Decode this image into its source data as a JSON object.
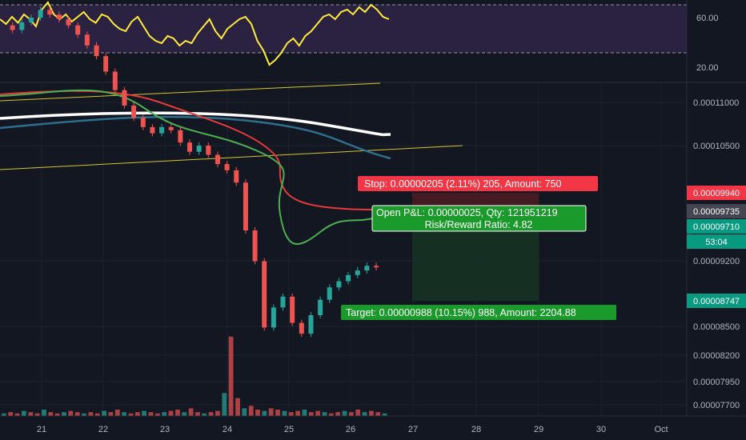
{
  "chart_data": {
    "type": "candlestick",
    "rsi": {
      "axis_ticks": [
        "60.00",
        "20.00"
      ],
      "upper_band": 70,
      "lower_band": 30,
      "values": [
        58,
        54,
        60,
        55,
        62,
        58,
        52,
        66,
        72,
        62,
        58,
        62,
        56,
        60,
        64,
        58,
        55,
        62,
        60,
        54,
        50,
        48,
        56,
        60,
        52,
        44,
        40,
        38,
        44,
        42,
        36,
        40,
        38,
        46,
        52,
        58,
        48,
        42,
        50,
        54,
        58,
        60,
        54,
        40,
        32,
        20,
        24,
        30,
        38,
        42,
        36,
        44,
        48,
        54,
        60,
        62,
        58,
        64,
        66,
        62,
        68,
        64,
        70,
        66,
        60,
        58
      ]
    },
    "price": {
      "axis_ticks": [
        "0.00011000",
        "0.00010500",
        "0.00009200",
        "0.00008500",
        "0.00008200",
        "0.00007950",
        "0.00007700"
      ],
      "price_tags": [
        {
          "label": "0.00009940",
          "color": "#f23645"
        },
        {
          "label": "0.00009735",
          "color": "#434651"
        },
        {
          "label": "0.00009710",
          "color": "#089981"
        },
        {
          "label": "53:04",
          "color": "#089981"
        },
        {
          "label": "0.00008747",
          "color": "#089981"
        }
      ],
      "stop_label": "Stop: 0.00000205 (2.11%) 205, Amount: 750",
      "target_label": "Target: 0.00000988 (10.15%) 988, Amount: 2204.88",
      "pnl_label": "Open P&L: 0.00000025, Qty: 121951219",
      "rr_label": "Risk/Reward Ratio: 4.82",
      "entry": 9.71e-05,
      "stop": 9.94e-05,
      "target": 8.747e-05,
      "closes": [
        0.0001128,
        0.0001125,
        0.000113,
        0.0001133,
        0.0001138,
        0.0001135,
        0.0001132,
        0.0001128,
        0.0001122,
        0.0001115,
        0.0001108,
        0.0001098,
        0.0001086,
        0.0001076,
        0.0001068,
        0.0001062,
        0.0001058,
        0.0001062,
        0.000106,
        0.0001052,
        0.0001046,
        0.000105,
        0.0001044,
        0.0001038,
        0.0001034,
        0.0001026,
        9.95e-05,
        9.75e-05,
        9.32e-05,
        9.45e-05,
        9.52e-05,
        9.35e-05,
        9.28e-05,
        9.4e-05,
        9.5e-05,
        9.58e-05,
        9.62e-05,
        9.66e-05,
        9.69e-05,
        9.72e-05,
        9.71e-05
      ]
    },
    "volume": [
      2,
      3,
      2,
      4,
      3,
      2,
      5,
      3,
      2,
      3,
      4,
      3,
      2,
      3,
      2,
      4,
      3,
      5,
      3,
      2,
      3,
      4,
      3,
      2,
      3,
      4,
      5,
      3,
      6,
      3,
      2,
      3,
      4,
      18,
      62,
      14,
      6,
      8,
      5,
      4,
      6,
      5,
      4,
      3,
      4,
      5,
      3,
      4,
      3,
      2,
      3,
      4,
      3,
      5,
      3,
      4,
      3,
      2
    ],
    "x_ticks": [
      "21",
      "22",
      "23",
      "24",
      "25",
      "26",
      "27",
      "28",
      "29",
      "30",
      "Oct"
    ]
  }
}
